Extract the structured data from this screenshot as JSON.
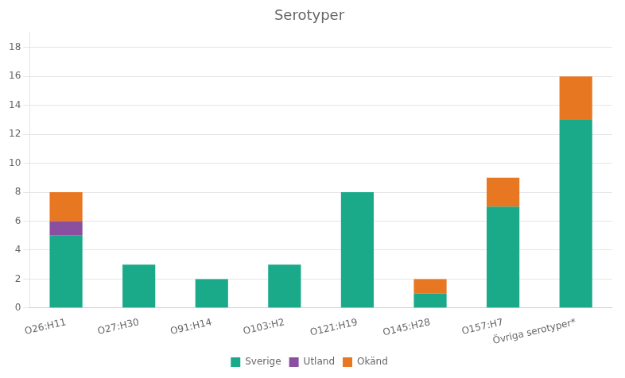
{
  "chart_data": {
    "type": "bar",
    "title": "Serotyper",
    "categories": [
      "O26:H11",
      "O27:H30",
      "O91:H14",
      "O103:H2",
      "O121:H19",
      "O145:H28",
      "O157:H7",
      "Övriga serotyper*"
    ],
    "series": [
      {
        "name": "Sverige",
        "color": "#1aaa8a",
        "values": [
          5,
          3,
          2,
          3,
          8,
          1,
          7,
          13
        ]
      },
      {
        "name": "Utland",
        "color": "#8B4FA0",
        "values": [
          1,
          0,
          0,
          0,
          0,
          0,
          0,
          0
        ]
      },
      {
        "name": "Okänd",
        "color": "#E87722",
        "values": [
          2,
          0,
          0,
          0,
          0,
          1,
          2,
          3
        ]
      }
    ],
    "stacked": true,
    "ylim": [
      0,
      19
    ],
    "yticks": [
      0,
      2,
      4,
      6,
      8,
      10,
      12,
      14,
      16,
      18
    ],
    "grid": true,
    "legend": "bottom"
  }
}
